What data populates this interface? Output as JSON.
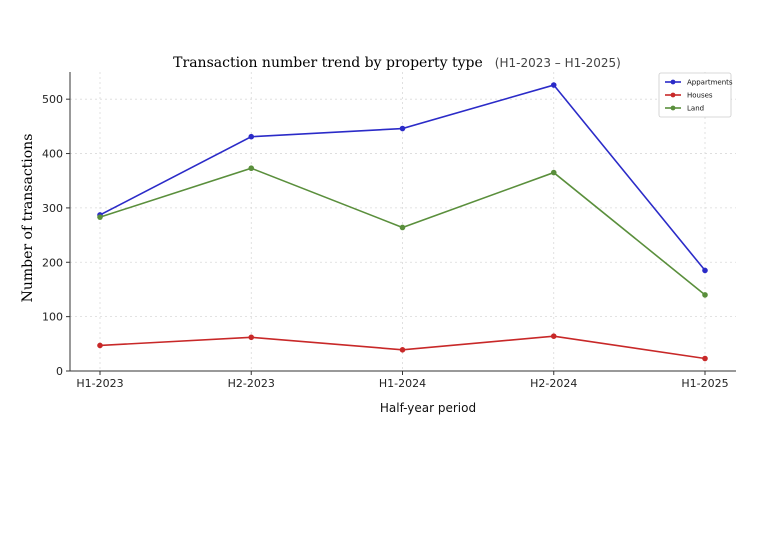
{
  "chart_data": {
    "type": "line",
    "title": "Transaction number trend by property type",
    "subtitle": "(H1-2023 – H1-2025)",
    "xlabel": "Half-year period",
    "ylabel": "Number of transactions",
    "categories": [
      "H1-2023",
      "H2-2023",
      "H1-2024",
      "H2-2024",
      "H1-2025"
    ],
    "y_ticks": [
      "0",
      "100",
      "200",
      "300",
      "400",
      "500"
    ],
    "ylim": [
      0,
      550
    ],
    "grid": true,
    "legend_position": "top-right",
    "series": [
      {
        "name": "Appartments",
        "color": "#2b2bc8",
        "values": [
          287,
          431,
          446,
          526,
          185
        ]
      },
      {
        "name": "Houses",
        "color": "#c82828",
        "values": [
          47,
          62,
          39,
          64,
          23
        ]
      },
      {
        "name": "Land",
        "color": "#5a8f3c",
        "values": [
          283,
          373,
          264,
          365,
          140
        ]
      }
    ]
  }
}
